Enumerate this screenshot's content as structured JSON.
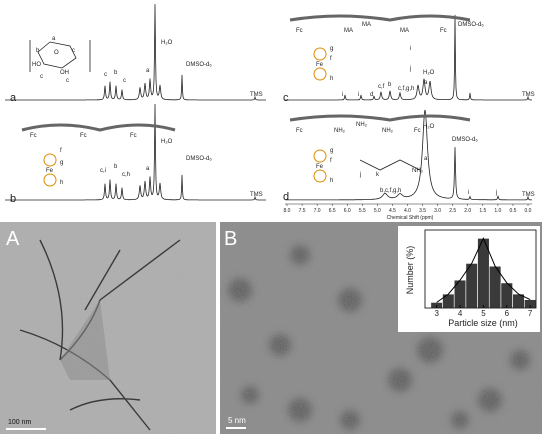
{
  "spectra": [
    {
      "label": "a",
      "peaks": [
        "c",
        "b",
        "c",
        "a",
        "H₂O",
        "DMSO-d₆",
        "TMS"
      ],
      "structure": [
        "a",
        "b",
        "c",
        "HO",
        "OH",
        "O",
        "c",
        "c"
      ]
    },
    {
      "label": "b",
      "peaks": [
        "c,i",
        "b",
        "c,h",
        "a",
        "H₂O",
        "DMSO-d₆",
        "TMS"
      ],
      "structure": [
        "Fc",
        "Fc",
        "Fc",
        "Fe",
        "f",
        "g",
        "h"
      ]
    },
    {
      "label": "c",
      "peaks": [
        "i",
        "i",
        "d",
        "c,f",
        "b",
        "c,f,g,h",
        "a",
        "H₂O",
        "DMSO-d₆",
        "TMS"
      ],
      "structure": [
        "Fc",
        "MA",
        "MA",
        "MA",
        "Fc",
        "Fe",
        "g",
        "f",
        "h",
        "i",
        "j"
      ]
    },
    {
      "label": "d",
      "peaks": [
        "b,c,f,g,h",
        "a",
        "H₂O",
        "DMSO-d₆",
        "i",
        "j",
        "TMS"
      ],
      "structure": [
        "Fc",
        "NH₂",
        "NH₂",
        "NH₂",
        "Fc",
        "Fe",
        "g",
        "f",
        "h",
        "j",
        "k",
        "NH₂"
      ]
    }
  ],
  "nmr_axis": {
    "ticks": [
      "8.0",
      "7.5",
      "7.0",
      "6.5",
      "6.0",
      "5.5",
      "5.0",
      "4.5",
      "4.0",
      "3.5",
      "3.0",
      "2.5",
      "2.0",
      "1.5",
      "1.0",
      "0.5",
      "0.0"
    ],
    "label": "Chemical Shift (ppm)"
  },
  "images": [
    {
      "label": "A",
      "scale_bar": "100 nm"
    },
    {
      "label": "B",
      "scale_bar": "5 nm"
    }
  ],
  "histogram": {
    "ylabel": "Number (%)",
    "xlabel": "Particle size (nm)",
    "xlim": [
      2.5,
      7.25
    ],
    "ylim": [
      0,
      28
    ],
    "xticks": [
      3,
      4,
      5,
      6,
      7
    ],
    "bins": [
      2.75,
      3.25,
      3.75,
      4.25,
      4.75,
      5.25,
      5.75,
      6.25,
      6.75,
      7.25
    ],
    "counts": [
      2,
      5,
      10,
      16,
      25,
      15,
      9,
      5,
      3
    ],
    "color": "#3a3a3a"
  }
}
